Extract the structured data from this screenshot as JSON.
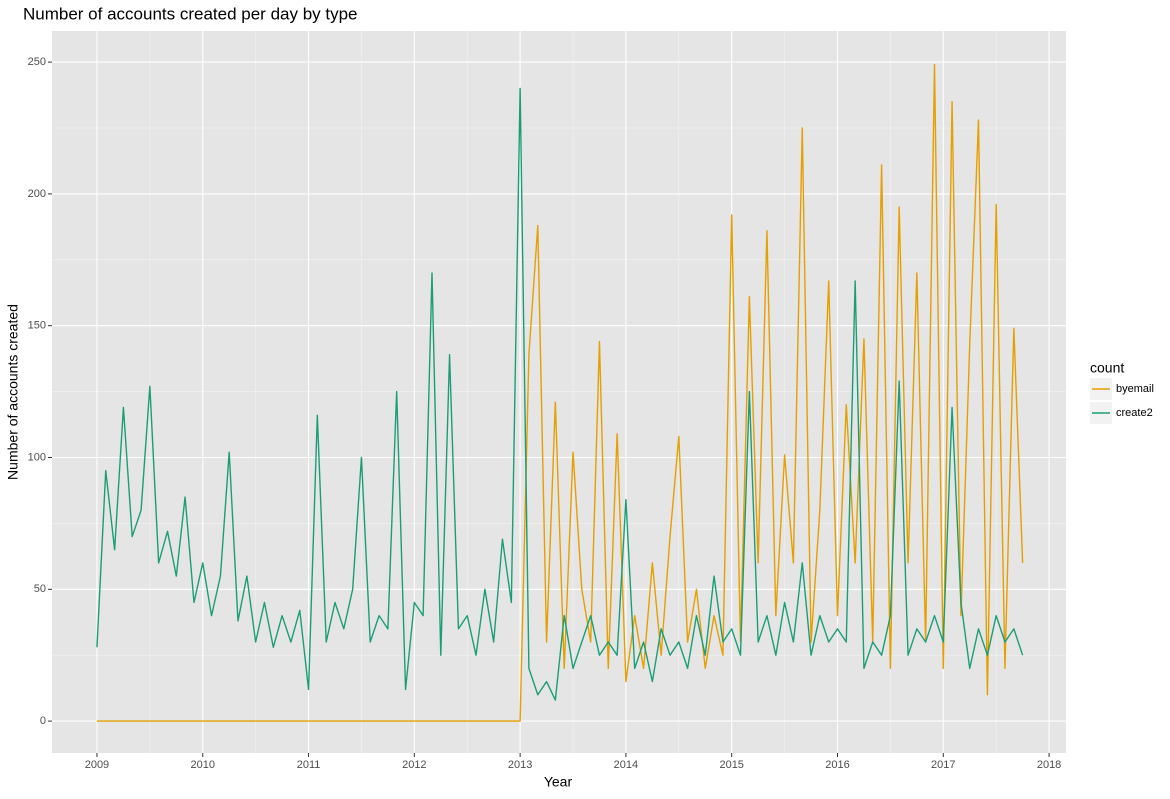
{
  "chart_data": {
    "type": "line",
    "title": "Number of accounts created per day by type",
    "x_label": "Year",
    "y_label": "Number of accounts created",
    "legend_title": "count",
    "legend_position": "right",
    "grid": true,
    "xlim": [
      2008.575,
      2018.16
    ],
    "xticks": [
      2009,
      2010,
      2011,
      2012,
      2013,
      2014,
      2015,
      2016,
      2017,
      2018
    ],
    "ylim": [
      -12.1,
      261.8
    ],
    "yticks": [
      0,
      50,
      100,
      150,
      200,
      250
    ],
    "x": [
      2009,
      2009.083,
      2009.167,
      2009.25,
      2009.333,
      2009.417,
      2009.5,
      2009.583,
      2009.667,
      2009.75,
      2009.833,
      2009.917,
      2010,
      2010.083,
      2010.167,
      2010.25,
      2010.333,
      2010.417,
      2010.5,
      2010.583,
      2010.667,
      2010.75,
      2010.833,
      2010.917,
      2011,
      2011.083,
      2011.167,
      2011.25,
      2011.333,
      2011.417,
      2011.5,
      2011.583,
      2011.667,
      2011.75,
      2011.833,
      2011.917,
      2012,
      2012.083,
      2012.167,
      2012.25,
      2012.333,
      2012.417,
      2012.5,
      2012.583,
      2012.667,
      2012.75,
      2012.833,
      2012.917,
      2013,
      2013.083,
      2013.167,
      2013.25,
      2013.333,
      2013.417,
      2013.5,
      2013.583,
      2013.667,
      2013.75,
      2013.833,
      2013.917,
      2014,
      2014.083,
      2014.167,
      2014.25,
      2014.333,
      2014.417,
      2014.5,
      2014.583,
      2014.667,
      2014.75,
      2014.833,
      2014.917,
      2015,
      2015.083,
      2015.167,
      2015.25,
      2015.333,
      2015.417,
      2015.5,
      2015.583,
      2015.667,
      2015.75,
      2015.833,
      2015.917,
      2016,
      2016.083,
      2016.167,
      2016.25,
      2016.333,
      2016.417,
      2016.5,
      2016.583,
      2016.667,
      2016.75,
      2016.833,
      2016.917,
      2017,
      2017.083,
      2017.167,
      2017.25,
      2017.333,
      2017.417,
      2017.5,
      2017.583,
      2017.667,
      2017.75
    ],
    "series": [
      {
        "name": "byemail",
        "color": "#E69F00",
        "values": [
          0,
          0,
          0,
          0,
          0,
          0,
          0,
          0,
          0,
          0,
          0,
          0,
          0,
          0,
          0,
          0,
          0,
          0,
          0,
          0,
          0,
          0,
          0,
          0,
          0,
          0,
          0,
          0,
          0,
          0,
          0,
          0,
          0,
          0,
          0,
          0,
          0,
          0,
          0,
          0,
          0,
          0,
          0,
          0,
          0,
          0,
          0,
          0,
          0,
          139,
          188,
          30,
          121,
          20,
          102,
          50,
          30,
          144,
          20,
          109,
          15,
          40,
          20,
          60,
          25,
          70,
          108,
          30,
          50,
          20,
          40,
          25,
          192,
          30,
          161,
          60,
          186,
          40,
          101,
          60,
          225,
          30,
          80,
          167,
          40,
          120,
          60,
          145,
          30,
          211,
          20,
          195,
          60,
          170,
          30,
          249,
          20,
          235,
          40,
          143,
          228,
          10,
          196,
          20,
          149,
          60
        ]
      },
      {
        "name": "create2",
        "color": "#1B9E77",
        "values": [
          28,
          95,
          65,
          119,
          70,
          80,
          127,
          60,
          72,
          55,
          85,
          45,
          60,
          40,
          55,
          102,
          38,
          55,
          30,
          45,
          28,
          40,
          30,
          42,
          12,
          116,
          30,
          45,
          35,
          50,
          100,
          30,
          40,
          35,
          125,
          12,
          45,
          40,
          170,
          25,
          139,
          35,
          40,
          25,
          50,
          30,
          69,
          45,
          240,
          20,
          10,
          15,
          8,
          40,
          20,
          30,
          40,
          25,
          30,
          25,
          84,
          20,
          30,
          15,
          35,
          25,
          30,
          20,
          40,
          25,
          55,
          30,
          35,
          25,
          125,
          30,
          40,
          25,
          45,
          30,
          60,
          25,
          40,
          30,
          35,
          30,
          167,
          20,
          30,
          25,
          40,
          129,
          25,
          35,
          30,
          40,
          30,
          119,
          45,
          20,
          35,
          25,
          40,
          30,
          35,
          25
        ]
      }
    ]
  }
}
